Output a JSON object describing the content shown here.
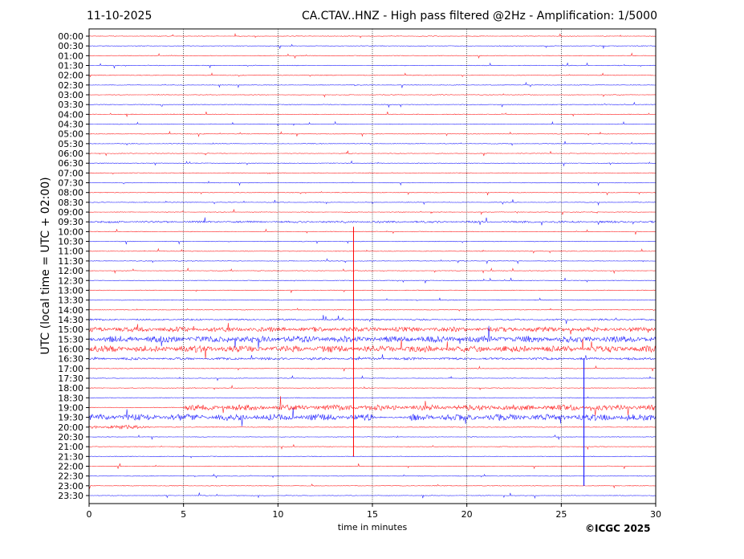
{
  "chart_data": {
    "type": "line",
    "subtype": "helicorder",
    "date": "11-10-2025",
    "title": "CA.CTAV..HNZ - High pass filtered @2Hz - Amplification: 1/5000",
    "xlabel": "time in minutes",
    "ylabel": "UTC (local time = UTC + 02:00)",
    "xlim": [
      0,
      30
    ],
    "xticks": [
      0,
      5,
      10,
      15,
      20,
      25,
      30
    ],
    "grid": "vertical dotted at 5-minute intervals",
    "row_colors": [
      "#ff0000",
      "#0000ff"
    ],
    "rows": [
      "00:00",
      "00:30",
      "01:00",
      "01:30",
      "02:00",
      "02:30",
      "03:00",
      "03:30",
      "04:00",
      "04:30",
      "05:00",
      "05:30",
      "06:00",
      "06:30",
      "07:00",
      "07:30",
      "08:00",
      "08:30",
      "09:00",
      "09:30",
      "10:00",
      "10:30",
      "11:00",
      "11:30",
      "12:00",
      "12:30",
      "13:00",
      "13:30",
      "14:00",
      "14:30",
      "15:00",
      "15:30",
      "16:00",
      "16:30",
      "17:00",
      "17:30",
      "18:00",
      "18:30",
      "19:00",
      "19:30",
      "20:00",
      "20:30",
      "21:00",
      "21:30",
      "22:00",
      "22:30",
      "23:00",
      "23:30"
    ]
  },
  "copyright": "©ICGC 2025"
}
